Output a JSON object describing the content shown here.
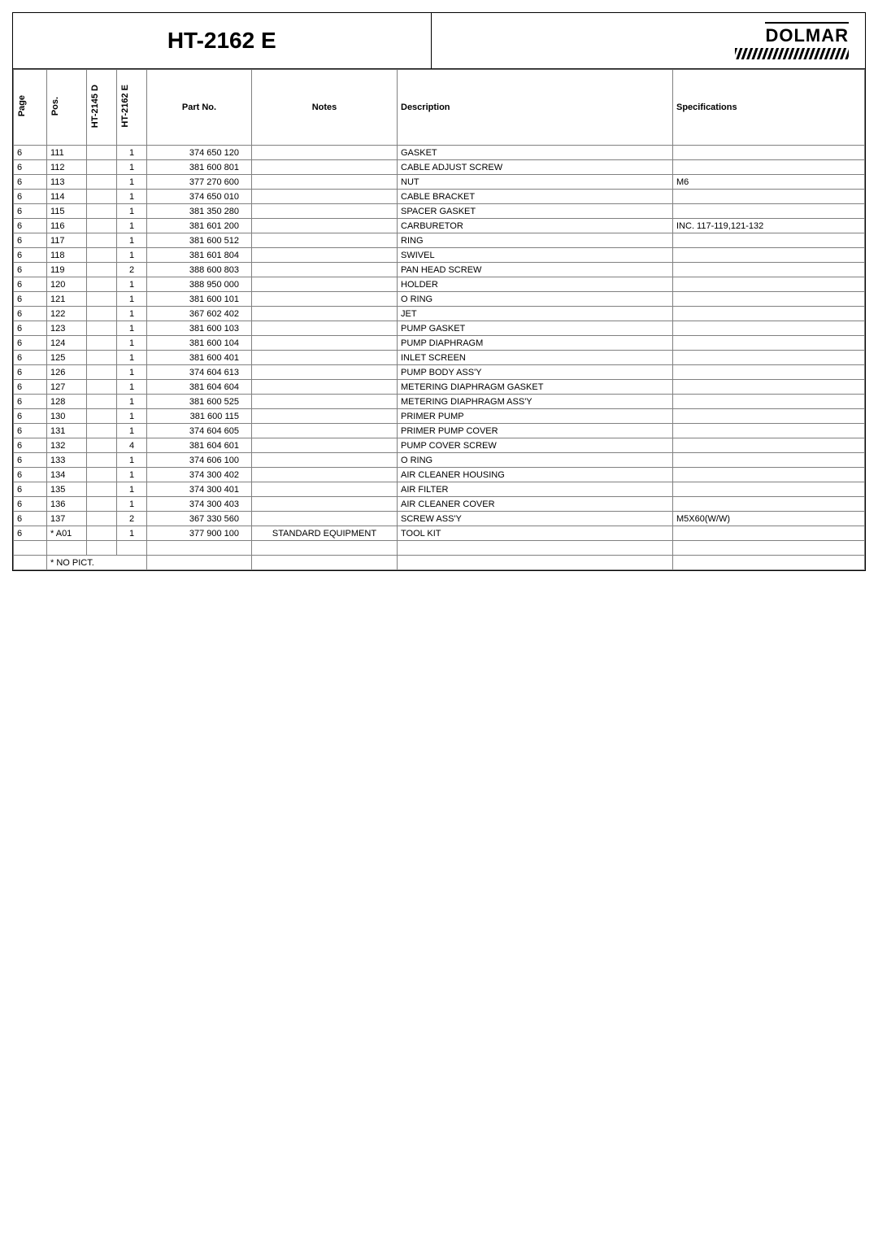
{
  "title": "HT-2162 E",
  "brand": "DOLMAR",
  "columns": {
    "page": "Page",
    "pos": "Pos.",
    "d": "HT-2145 D",
    "e": "HT-2162 E",
    "part": "Part No.",
    "notes": "Notes",
    "desc": "Description",
    "spec": "Specifications"
  },
  "rows": [
    {
      "page": "6",
      "pos": "111",
      "d": "",
      "e": "1",
      "part": "374 650 120",
      "notes": "",
      "desc": "GASKET",
      "spec": ""
    },
    {
      "page": "6",
      "pos": "112",
      "d": "",
      "e": "1",
      "part": "381 600 801",
      "notes": "",
      "desc": "CABLE ADJUST SCREW",
      "spec": ""
    },
    {
      "page": "6",
      "pos": "113",
      "d": "",
      "e": "1",
      "part": "377 270 600",
      "notes": "",
      "desc": "NUT",
      "spec": "M6"
    },
    {
      "page": "6",
      "pos": "114",
      "d": "",
      "e": "1",
      "part": "374 650 010",
      "notes": "",
      "desc": "CABLE BRACKET",
      "spec": ""
    },
    {
      "page": "6",
      "pos": "115",
      "d": "",
      "e": "1",
      "part": "381 350 280",
      "notes": "",
      "desc": "SPACER GASKET",
      "spec": ""
    },
    {
      "page": "6",
      "pos": "116",
      "d": "",
      "e": "1",
      "part": "381 601 200",
      "notes": "",
      "desc": "CARBURETOR",
      "spec": "INC. 117-119,121-132"
    },
    {
      "page": "6",
      "pos": "117",
      "d": "",
      "e": "1",
      "part": "381 600 512",
      "notes": "",
      "desc": "RING",
      "spec": ""
    },
    {
      "page": "6",
      "pos": "118",
      "d": "",
      "e": "1",
      "part": "381 601 804",
      "notes": "",
      "desc": "SWIVEL",
      "spec": ""
    },
    {
      "page": "6",
      "pos": "119",
      "d": "",
      "e": "2",
      "part": "388 600 803",
      "notes": "",
      "desc": "PAN HEAD SCREW",
      "spec": ""
    },
    {
      "page": "6",
      "pos": "120",
      "d": "",
      "e": "1",
      "part": "388 950 000",
      "notes": "",
      "desc": "HOLDER",
      "spec": ""
    },
    {
      "page": "6",
      "pos": "121",
      "d": "",
      "e": "1",
      "part": "381 600 101",
      "notes": "",
      "desc": "O RING",
      "spec": ""
    },
    {
      "page": "6",
      "pos": "122",
      "d": "",
      "e": "1",
      "part": "367 602 402",
      "notes": "",
      "desc": "JET",
      "spec": ""
    },
    {
      "page": "6",
      "pos": "123",
      "d": "",
      "e": "1",
      "part": "381 600 103",
      "notes": "",
      "desc": "PUMP GASKET",
      "spec": ""
    },
    {
      "page": "6",
      "pos": "124",
      "d": "",
      "e": "1",
      "part": "381 600 104",
      "notes": "",
      "desc": "PUMP DIAPHRAGM",
      "spec": ""
    },
    {
      "page": "6",
      "pos": "125",
      "d": "",
      "e": "1",
      "part": "381 600 401",
      "notes": "",
      "desc": "INLET SCREEN",
      "spec": ""
    },
    {
      "page": "6",
      "pos": "126",
      "d": "",
      "e": "1",
      "part": "374 604 613",
      "notes": "",
      "desc": "PUMP BODY ASS'Y",
      "spec": ""
    },
    {
      "page": "6",
      "pos": "127",
      "d": "",
      "e": "1",
      "part": "381 604 604",
      "notes": "",
      "desc": "METERING DIAPHRAGM GASKET",
      "spec": ""
    },
    {
      "page": "6",
      "pos": "128",
      "d": "",
      "e": "1",
      "part": "381 600 525",
      "notes": "",
      "desc": "METERING DIAPHRAGM ASS'Y",
      "spec": ""
    },
    {
      "page": "6",
      "pos": "130",
      "d": "",
      "e": "1",
      "part": "381 600 115",
      "notes": "",
      "desc": "PRIMER PUMP",
      "spec": ""
    },
    {
      "page": "6",
      "pos": "131",
      "d": "",
      "e": "1",
      "part": "374 604 605",
      "notes": "",
      "desc": "PRIMER PUMP COVER",
      "spec": ""
    },
    {
      "page": "6",
      "pos": "132",
      "d": "",
      "e": "4",
      "part": "381 604 601",
      "notes": "",
      "desc": "PUMP COVER SCREW",
      "spec": ""
    },
    {
      "page": "6",
      "pos": "133",
      "d": "",
      "e": "1",
      "part": "374 606 100",
      "notes": "",
      "desc": "O RING",
      "spec": ""
    },
    {
      "page": "6",
      "pos": "134",
      "d": "",
      "e": "1",
      "part": "374 300 402",
      "notes": "",
      "desc": "AIR CLEANER HOUSING",
      "spec": ""
    },
    {
      "page": "6",
      "pos": "135",
      "d": "",
      "e": "1",
      "part": "374 300 401",
      "notes": "",
      "desc": "AIR FILTER",
      "spec": ""
    },
    {
      "page": "6",
      "pos": "136",
      "d": "",
      "e": "1",
      "part": "374 300 403",
      "notes": "",
      "desc": "AIR CLEANER COVER",
      "spec": ""
    },
    {
      "page": "6",
      "pos": "137",
      "d": "",
      "e": "2",
      "part": "367 330 560",
      "notes": "",
      "desc": "SCREW ASS'Y",
      "spec": "M5X60(W/W)"
    },
    {
      "page": "6",
      "pos": "* A01",
      "d": "",
      "e": "1",
      "part": "377 900 100",
      "notes": "STANDARD EQUIPMENT",
      "desc": "TOOL KIT",
      "spec": ""
    }
  ],
  "footer_note": "* NO PICT."
}
